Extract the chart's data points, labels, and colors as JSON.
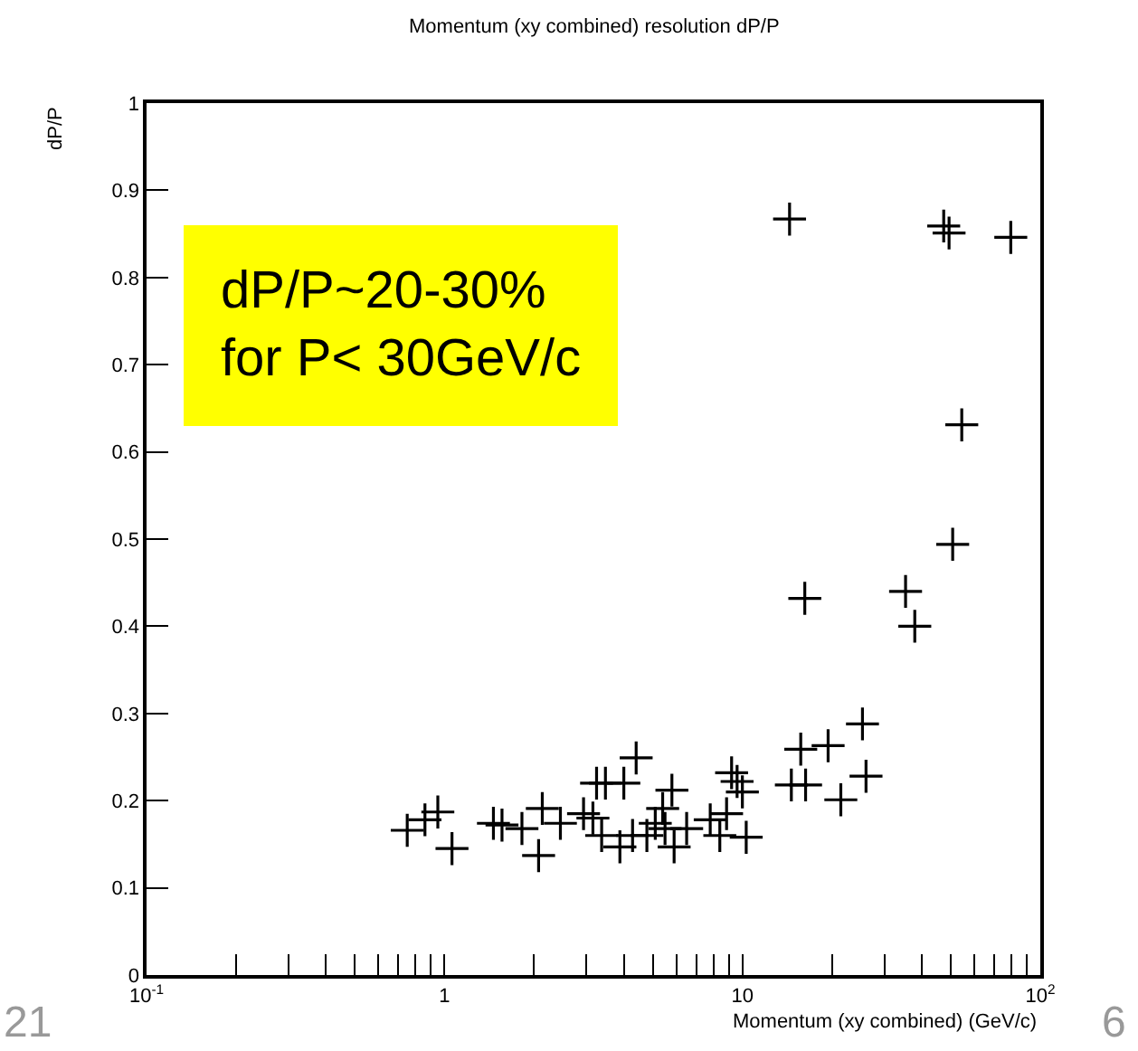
{
  "chart_data": {
    "type": "scatter",
    "title": "Momentum (xy combined) resolution dP/P",
    "xlabel": "Momentum (xy combined) (GeV/c)",
    "ylabel": "dP/P",
    "annotations": [
      "dP/P~20-30%\nfor P< 30GeV/c",
      "21",
      "6"
    ],
    "log": "x",
    "marker": "cross",
    "grid": false,
    "x": [
      14.4,
      47.4,
      49.4,
      79.6,
      54.5,
      50.8,
      16.2,
      35.3,
      37.9,
      25.3,
      15.7,
      19.4,
      14.6,
      16.3,
      21.4,
      26,
      0.75,
      0.86,
      0.95,
      1.06,
      1.46,
      1.56,
      1.82,
      2.07,
      2.13,
      2.45,
      2.93,
      3.24,
      3.47,
      4.0,
      4.4,
      3.37,
      3.15,
      3.88,
      4.28,
      4.78,
      5.1,
      5.4,
      5.5,
      5.8,
      5.9,
      6.5,
      7.8,
      8.4,
      9.2,
      9.6,
      10.3,
      10,
      8.85
    ],
    "series": [
      {
        "color": "#000000",
        "values": [
          0.867,
          0.859,
          0.851,
          0.846,
          0.631,
          0.494,
          0.432,
          0.44,
          0.4,
          0.288,
          0.259,
          0.263,
          0.218,
          0.218,
          0.201,
          0.228,
          0.166,
          0.178,
          0.187,
          0.145,
          0.174,
          0.172,
          0.168,
          0.137,
          0.191,
          0.174,
          0.185,
          0.22,
          0.22,
          0.22,
          0.249,
          0.16,
          0.18,
          0.147,
          0.16,
          0.16,
          0.174,
          0.191,
          0.168,
          0.212,
          0.147,
          0.168,
          0.178,
          0.16,
          0.232,
          0.222,
          0.158,
          0.21,
          0.185
        ]
      }
    ],
    "xlim": [
      0.1,
      100
    ],
    "xticks": [
      {
        "value": 0.1,
        "label": "10$^{-1}$"
      },
      {
        "value": 0.2,
        "label": null
      },
      {
        "value": 0.3,
        "label": null
      },
      {
        "value": 0.4,
        "label": null
      },
      {
        "value": 0.5,
        "label": null
      },
      {
        "value": 0.6,
        "label": null
      },
      {
        "value": 0.7,
        "label": null
      },
      {
        "value": 0.8,
        "label": null
      },
      {
        "value": 0.9,
        "label": null
      },
      1,
      {
        "value": 2,
        "label": null
      },
      {
        "value": 3,
        "label": null
      },
      {
        "value": 4,
        "label": null
      },
      {
        "value": 5,
        "label": null
      },
      {
        "value": 6,
        "label": null
      },
      {
        "value": 7,
        "label": null
      },
      {
        "value": 8,
        "label": null
      },
      {
        "value": 9,
        "label": null
      },
      10,
      {
        "value": 20,
        "label": null
      },
      {
        "value": 30,
        "label": null
      },
      {
        "value": 40,
        "label": null
      },
      {
        "value": 50,
        "label": null
      },
      {
        "value": 60,
        "label": null
      },
      {
        "value": 70,
        "label": null
      },
      {
        "value": 80,
        "label": null
      },
      {
        "value": 90,
        "label": null
      },
      {
        "value": 100,
        "label": "10$^{2}$"
      }
    ],
    "ylim": [
      0,
      1
    ],
    "yticks": [
      0,
      0.1,
      0.2,
      0.3,
      0.4,
      0.5,
      0.6,
      0.7,
      0.8,
      0.9,
      1
    ]
  }
}
